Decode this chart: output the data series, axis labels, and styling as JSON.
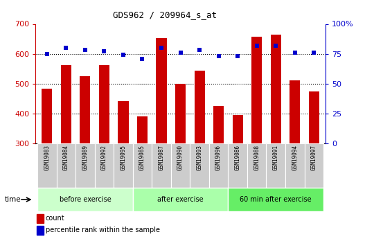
{
  "title": "GDS962 / 209964_s_at",
  "categories": [
    "GSM19083",
    "GSM19084",
    "GSM19089",
    "GSM19092",
    "GSM19095",
    "GSM19085",
    "GSM19087",
    "GSM19090",
    "GSM19093",
    "GSM19096",
    "GSM19086",
    "GSM19088",
    "GSM19091",
    "GSM19094",
    "GSM19097"
  ],
  "bar_values": [
    484,
    563,
    524,
    563,
    441,
    390,
    653,
    500,
    544,
    425,
    395,
    658,
    665,
    510,
    474
  ],
  "percentile_values": [
    75,
    80,
    78,
    77,
    74,
    71,
    80,
    76,
    78,
    73,
    73,
    82,
    82,
    76,
    76
  ],
  "group_labels": [
    "before exercise",
    "after exercise",
    "60 min after exercise"
  ],
  "group_sizes": [
    5,
    5,
    5
  ],
  "ylim_left": [
    300,
    700
  ],
  "ylim_right": [
    0,
    100
  ],
  "yticks_left": [
    300,
    400,
    500,
    600,
    700
  ],
  "yticks_right": [
    0,
    25,
    50,
    75,
    100
  ],
  "yright_labels": [
    "0",
    "25",
    "50",
    "75",
    "100%"
  ],
  "bar_color": "#cc0000",
  "dot_color": "#0000cc",
  "tick_bg_color": "#cccccc",
  "plot_bg_color": "#ffffff",
  "group_colors": [
    "#ccffcc",
    "#aaffaa",
    "#66ee66"
  ],
  "legend_labels": [
    "count",
    "percentile rank within the sample"
  ],
  "time_label": "time"
}
